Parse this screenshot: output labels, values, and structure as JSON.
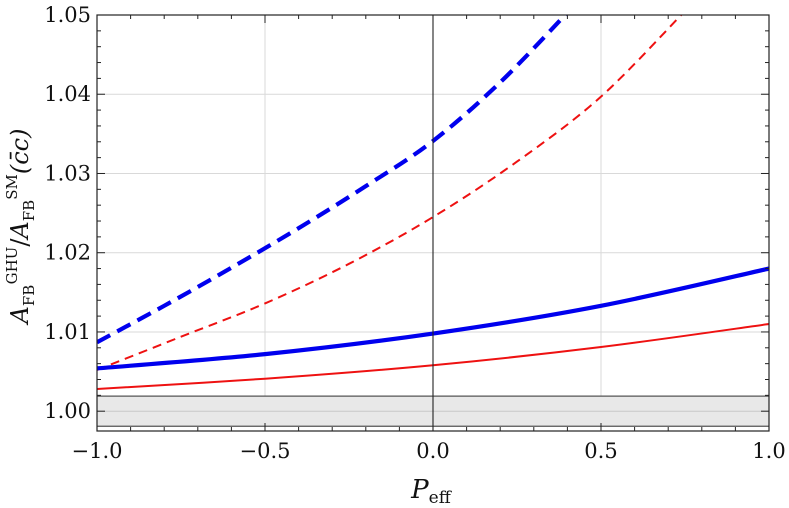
{
  "chart_data": {
    "type": "line",
    "title": "",
    "xlabel": {
      "main": "P",
      "sub": "eff"
    },
    "ylabel": {
      "A1": "A",
      "A1_sub": "FB",
      "A1_sup": "GHU",
      "slash": "/",
      "A2": "A",
      "A2_sub": "FB",
      "A2_sup": "SM",
      "arg": "(c̄c)"
    },
    "xlim": [
      -1.0,
      1.0
    ],
    "ylim": [
      0.9975,
      1.05
    ],
    "x_ticks": [
      -1.0,
      -0.5,
      0.0,
      0.5,
      1.0
    ],
    "x_tick_labels": [
      "−1.0",
      "−0.5",
      "0.0",
      "0.5",
      "1.0"
    ],
    "y_ticks": [
      1.0,
      1.01,
      1.02,
      1.03,
      1.04,
      1.05
    ],
    "y_tick_labels": [
      "1.00",
      "1.01",
      "1.02",
      "1.03",
      "1.04",
      "1.05"
    ],
    "grid": true,
    "band": {
      "y_low": 0.9981,
      "y_high": 1.0019,
      "mid": 1.0,
      "color": "#e8e8e8"
    },
    "colors": {
      "blue": "#0000ee",
      "red": "#ee1111",
      "axis": "#111111",
      "grid": "#d9d9d9"
    },
    "series": [
      {
        "color": "#0000ee",
        "style": "dashed",
        "width": "thick",
        "x": [
          -1.0,
          -0.8,
          -0.6,
          -0.4,
          -0.2,
          0.0,
          0.2,
          0.4
        ],
        "y": [
          1.0087,
          1.0133,
          1.0181,
          1.0231,
          1.0284,
          1.0341,
          1.0415,
          1.0503
        ]
      },
      {
        "color": "#ee1111",
        "style": "dashed",
        "width": "thin",
        "x": [
          -1.0,
          -0.75,
          -0.5,
          -0.25,
          0.0,
          0.25,
          0.5,
          0.75
        ],
        "y": [
          1.0052,
          1.0094,
          1.0136,
          1.0186,
          1.0245,
          1.0315,
          1.0397,
          1.0505
        ]
      },
      {
        "color": "#0000ee",
        "style": "solid",
        "width": "thick",
        "x": [
          -1.0,
          -0.5,
          0.0,
          0.5,
          1.0
        ],
        "y": [
          1.0054,
          1.0072,
          1.0098,
          1.0133,
          1.018
        ]
      },
      {
        "color": "#ee1111",
        "style": "solid",
        "width": "thin",
        "x": [
          -1.0,
          -0.5,
          0.0,
          0.5,
          1.0
        ],
        "y": [
          1.0028,
          1.0041,
          1.0058,
          1.0081,
          1.011
        ]
      }
    ]
  }
}
